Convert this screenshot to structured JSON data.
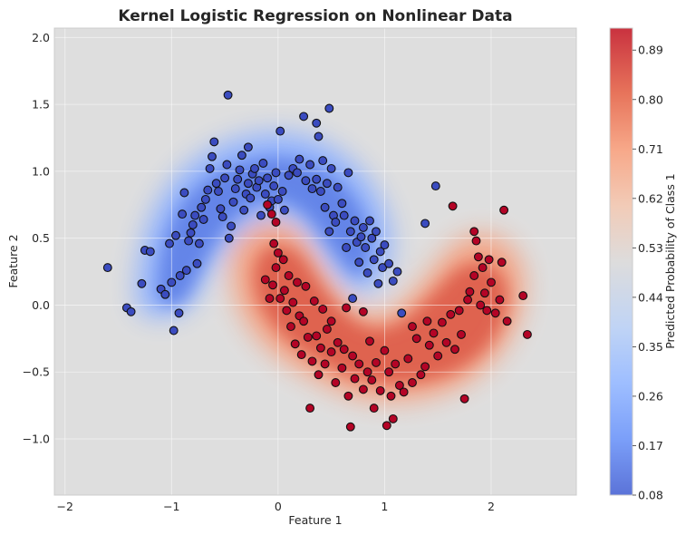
{
  "chart_data": {
    "type": "scatter",
    "title": "Kernel Logistic Regression on Nonlinear Data",
    "xlabel": "Feature 1",
    "ylabel": "Feature 2",
    "xlim": [
      -2.1,
      2.8
    ],
    "ylim": [
      -1.42,
      2.07
    ],
    "xticks": [
      "−2",
      "−1",
      "0",
      "1",
      "2"
    ],
    "xtick_values": [
      -2,
      -1,
      0,
      1,
      2
    ],
    "yticks": [
      "−1.0",
      "−0.5",
      "0.0",
      "0.5",
      "1.0",
      "1.5",
      "2.0"
    ],
    "ytick_values": [
      -1.0,
      -0.5,
      0.0,
      0.5,
      1.0,
      1.5,
      2.0
    ],
    "grid": true,
    "colorbar": {
      "label": "Predicted Probability of Class 1",
      "range": [
        0.08,
        0.93
      ],
      "ticks": [
        "0.08",
        "0.17",
        "0.26",
        "0.35",
        "0.44",
        "0.53",
        "0.62",
        "0.71",
        "0.80",
        "0.89"
      ],
      "tick_values": [
        0.08,
        0.17,
        0.26,
        0.35,
        0.44,
        0.53,
        0.62,
        0.71,
        0.8,
        0.89
      ],
      "colormap": "coolwarm"
    },
    "series": [
      {
        "class": 0,
        "color": "#3b4cc0",
        "points": [
          [
            -1.6,
            0.28
          ],
          [
            -1.42,
            -0.02
          ],
          [
            -1.38,
            -0.05
          ],
          [
            -1.28,
            0.16
          ],
          [
            -1.25,
            0.41
          ],
          [
            -1.2,
            0.4
          ],
          [
            -1.1,
            0.12
          ],
          [
            -1.06,
            0.08
          ],
          [
            -1.02,
            0.46
          ],
          [
            -1.0,
            0.17
          ],
          [
            -0.98,
            -0.19
          ],
          [
            -0.96,
            0.52
          ],
          [
            -0.93,
            -0.06
          ],
          [
            -0.92,
            0.22
          ],
          [
            -0.9,
            0.68
          ],
          [
            -0.88,
            0.84
          ],
          [
            -0.86,
            0.26
          ],
          [
            -0.84,
            0.48
          ],
          [
            -0.82,
            0.54
          ],
          [
            -0.8,
            0.6
          ],
          [
            -0.78,
            0.67
          ],
          [
            -0.76,
            0.31
          ],
          [
            -0.74,
            0.46
          ],
          [
            -0.72,
            0.73
          ],
          [
            -0.7,
            0.64
          ],
          [
            -0.68,
            0.79
          ],
          [
            -0.66,
            0.86
          ],
          [
            -0.64,
            1.02
          ],
          [
            -0.62,
            1.11
          ],
          [
            -0.6,
            1.22
          ],
          [
            -0.58,
            0.91
          ],
          [
            -0.56,
            0.85
          ],
          [
            -0.54,
            0.72
          ],
          [
            -0.52,
            0.66
          ],
          [
            -0.5,
            0.95
          ],
          [
            -0.48,
            1.05
          ],
          [
            -0.47,
            1.57
          ],
          [
            -0.46,
            0.5
          ],
          [
            -0.44,
            0.59
          ],
          [
            -0.42,
            0.77
          ],
          [
            -0.4,
            0.87
          ],
          [
            -0.38,
            0.94
          ],
          [
            -0.36,
            1.01
          ],
          [
            -0.34,
            1.12
          ],
          [
            -0.32,
            0.71
          ],
          [
            -0.3,
            0.83
          ],
          [
            -0.28,
            0.91
          ],
          [
            -0.26,
            0.8
          ],
          [
            -0.24,
            0.98
          ],
          [
            -0.22,
            1.02
          ],
          [
            -0.2,
            0.88
          ],
          [
            -0.18,
            0.93
          ],
          [
            -0.16,
            0.67
          ],
          [
            -0.14,
            1.06
          ],
          [
            -0.12,
            0.83
          ],
          [
            -0.1,
            0.95
          ],
          [
            -0.08,
            0.73
          ],
          [
            -0.06,
            0.78
          ],
          [
            -0.04,
            0.89
          ],
          [
            -0.02,
            0.99
          ],
          [
            0.0,
            0.79
          ],
          [
            0.02,
            1.3
          ],
          [
            0.04,
            0.85
          ],
          [
            0.06,
            0.71
          ],
          [
            0.1,
            0.97
          ],
          [
            0.14,
            1.02
          ],
          [
            0.18,
            0.99
          ],
          [
            0.2,
            1.09
          ],
          [
            0.24,
            1.41
          ],
          [
            0.26,
            0.93
          ],
          [
            0.3,
            1.05
          ],
          [
            0.32,
            0.87
          ],
          [
            0.36,
            1.36
          ],
          [
            0.38,
            1.26
          ],
          [
            0.4,
            0.85
          ],
          [
            0.42,
            1.08
          ],
          [
            0.44,
            0.73
          ],
          [
            0.46,
            0.91
          ],
          [
            0.48,
            0.55
          ],
          [
            0.5,
            1.02
          ],
          [
            0.52,
            0.67
          ],
          [
            0.54,
            0.62
          ],
          [
            0.56,
            0.88
          ],
          [
            0.6,
            0.76
          ],
          [
            0.62,
            0.67
          ],
          [
            0.64,
            0.43
          ],
          [
            0.66,
            0.99
          ],
          [
            0.68,
            0.55
          ],
          [
            0.7,
            0.05
          ],
          [
            0.72,
            0.63
          ],
          [
            0.74,
            0.47
          ],
          [
            0.76,
            0.32
          ],
          [
            0.78,
            0.51
          ],
          [
            0.8,
            0.58
          ],
          [
            0.82,
            0.43
          ],
          [
            0.84,
            0.24
          ],
          [
            0.86,
            0.63
          ],
          [
            0.88,
            0.5
          ],
          [
            0.9,
            0.34
          ],
          [
            0.92,
            0.55
          ],
          [
            0.94,
            0.16
          ],
          [
            0.96,
            0.4
          ],
          [
            0.98,
            0.28
          ],
          [
            1.0,
            0.45
          ],
          [
            1.04,
            0.31
          ],
          [
            1.08,
            0.18
          ],
          [
            1.12,
            0.25
          ],
          [
            1.16,
            -0.06
          ],
          [
            1.38,
            0.61
          ],
          [
            1.48,
            0.89
          ],
          [
            0.36,
            0.94
          ],
          [
            0.48,
            1.47
          ],
          [
            -0.28,
            1.18
          ]
        ]
      },
      {
        "class": 1,
        "color": "#b40426",
        "points": [
          [
            -0.1,
            0.75
          ],
          [
            -0.06,
            0.68
          ],
          [
            -0.04,
            0.46
          ],
          [
            -0.02,
            0.62
          ],
          [
            0.0,
            0.39
          ],
          [
            -0.02,
            0.28
          ],
          [
            -0.05,
            0.15
          ],
          [
            -0.08,
            0.05
          ],
          [
            -0.12,
            0.19
          ],
          [
            0.02,
            0.05
          ],
          [
            0.05,
            0.34
          ],
          [
            0.06,
            0.11
          ],
          [
            0.08,
            -0.04
          ],
          [
            0.1,
            0.22
          ],
          [
            0.12,
            -0.16
          ],
          [
            0.14,
            0.02
          ],
          [
            0.16,
            -0.29
          ],
          [
            0.18,
            0.17
          ],
          [
            0.2,
            -0.08
          ],
          [
            0.22,
            -0.37
          ],
          [
            0.24,
            -0.12
          ],
          [
            0.26,
            0.14
          ],
          [
            0.28,
            -0.24
          ],
          [
            0.3,
            -0.77
          ],
          [
            0.32,
            -0.42
          ],
          [
            0.34,
            0.03
          ],
          [
            0.36,
            -0.23
          ],
          [
            0.38,
            -0.52
          ],
          [
            0.4,
            -0.32
          ],
          [
            0.42,
            -0.03
          ],
          [
            0.44,
            -0.44
          ],
          [
            0.46,
            -0.18
          ],
          [
            0.5,
            -0.35
          ],
          [
            0.54,
            -0.58
          ],
          [
            0.56,
            -0.28
          ],
          [
            0.6,
            -0.47
          ],
          [
            0.62,
            -0.33
          ],
          [
            0.66,
            -0.68
          ],
          [
            0.68,
            -0.91
          ],
          [
            0.7,
            -0.38
          ],
          [
            0.72,
            -0.55
          ],
          [
            0.76,
            -0.44
          ],
          [
            0.8,
            -0.63
          ],
          [
            0.84,
            -0.5
          ],
          [
            0.86,
            -0.27
          ],
          [
            0.88,
            -0.56
          ],
          [
            0.9,
            -0.77
          ],
          [
            0.92,
            -0.43
          ],
          [
            0.96,
            -0.64
          ],
          [
            1.0,
            -0.34
          ],
          [
            1.02,
            -0.9
          ],
          [
            1.04,
            -0.5
          ],
          [
            1.06,
            -0.68
          ],
          [
            1.08,
            -0.85
          ],
          [
            1.1,
            -0.44
          ],
          [
            1.14,
            -0.6
          ],
          [
            1.18,
            -0.65
          ],
          [
            1.22,
            -0.4
          ],
          [
            1.26,
            -0.58
          ],
          [
            1.3,
            -0.25
          ],
          [
            1.34,
            -0.52
          ],
          [
            1.38,
            -0.46
          ],
          [
            1.42,
            -0.3
          ],
          [
            1.46,
            -0.21
          ],
          [
            1.5,
            -0.38
          ],
          [
            1.54,
            -0.13
          ],
          [
            1.58,
            -0.28
          ],
          [
            1.62,
            -0.07
          ],
          [
            1.64,
            0.74
          ],
          [
            1.66,
            -0.33
          ],
          [
            1.7,
            -0.04
          ],
          [
            1.72,
            -0.22
          ],
          [
            1.75,
            -0.7
          ],
          [
            1.78,
            0.04
          ],
          [
            1.8,
            0.1
          ],
          [
            1.84,
            0.22
          ],
          [
            1.86,
            0.48
          ],
          [
            1.88,
            0.36
          ],
          [
            1.9,
            0.0
          ],
          [
            1.92,
            0.28
          ],
          [
            1.94,
            0.09
          ],
          [
            1.96,
            -0.04
          ],
          [
            2.0,
            0.17
          ],
          [
            2.04,
            -0.06
          ],
          [
            2.08,
            0.04
          ],
          [
            2.1,
            0.32
          ],
          [
            2.12,
            0.71
          ],
          [
            2.15,
            -0.12
          ],
          [
            2.3,
            0.07
          ],
          [
            2.34,
            -0.22
          ],
          [
            1.84,
            0.55
          ],
          [
            1.98,
            0.34
          ],
          [
            1.26,
            -0.16
          ],
          [
            1.4,
            -0.12
          ],
          [
            0.8,
            -0.05
          ],
          [
            0.64,
            -0.02
          ],
          [
            0.5,
            -0.12
          ]
        ]
      }
    ]
  }
}
